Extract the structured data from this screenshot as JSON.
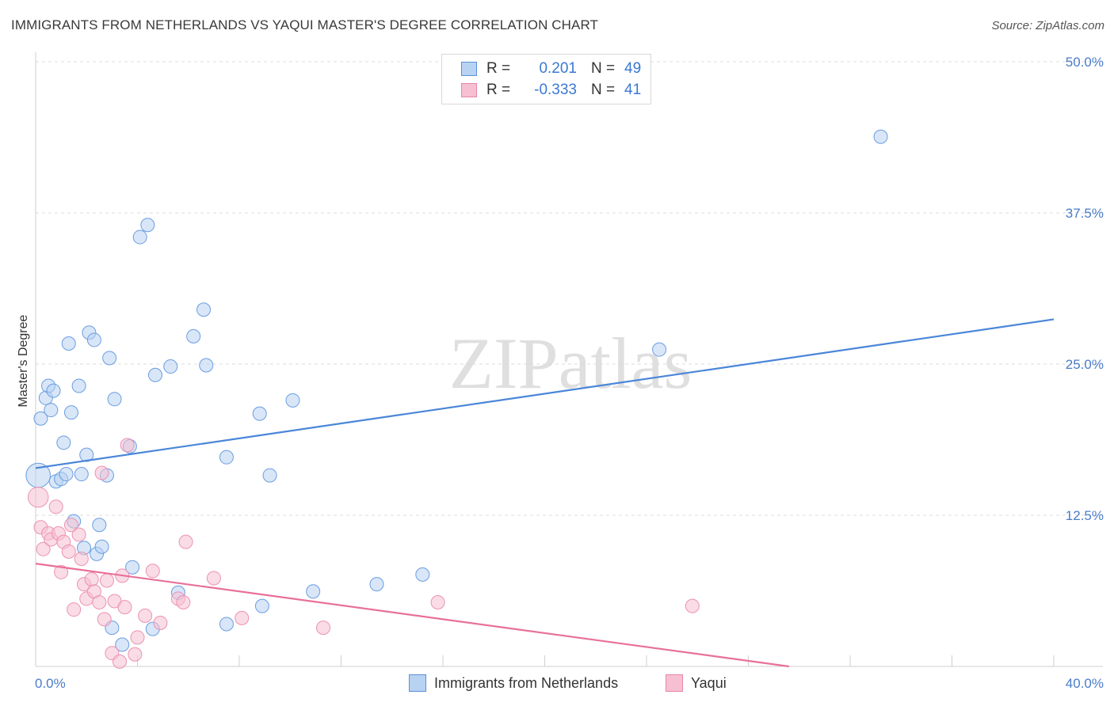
{
  "title": "IMMIGRANTS FROM NETHERLANDS VS YAQUI MASTER'S DEGREE CORRELATION CHART",
  "source": "Source: ZipAtlas.com",
  "watermark": "ZIPatlas",
  "legend": {
    "rows": [
      {
        "r_label": "R =",
        "r_value": "0.201",
        "n_label": "N =",
        "n_value": "49"
      },
      {
        "r_label": "R =",
        "r_value": "-0.333",
        "n_label": "N =",
        "n_value": "41"
      }
    ]
  },
  "bottom_legend": [
    "Immigrants from Netherlands",
    "Yaqui"
  ],
  "colors": {
    "blue": "#4a86d8",
    "blue_fill": "#b8d2f2",
    "pink": "#e8709a",
    "pink_fill": "#f6c0d2"
  },
  "chart_data": {
    "type": "scatter",
    "title": "IMMIGRANTS FROM NETHERLANDS VS YAQUI MASTER'S DEGREE CORRELATION CHART",
    "xlabel": "",
    "ylabel": "Master's Degree",
    "xlim": [
      0,
      40
    ],
    "ylim": [
      0,
      50
    ],
    "x_ticks": [
      "0.0%",
      "40.0%"
    ],
    "y_ticks": [
      {
        "value": 12.5,
        "label": "12.5%"
      },
      {
        "value": 25.0,
        "label": "25.0%"
      },
      {
        "value": 37.5,
        "label": "37.5%"
      },
      {
        "value": 50.0,
        "label": "50.0%"
      }
    ],
    "series": [
      {
        "name": "Immigrants from Netherlands",
        "color": "#4a86d8",
        "trend": {
          "x": [
            0,
            40
          ],
          "y": [
            16.4,
            28.7
          ]
        },
        "points": [
          [
            0.1,
            15.8,
            1.8
          ],
          [
            0.2,
            20.5,
            1
          ],
          [
            0.4,
            22.2,
            1
          ],
          [
            0.5,
            23.2,
            1
          ],
          [
            0.6,
            21.2,
            1
          ],
          [
            0.7,
            22.8,
            1
          ],
          [
            0.8,
            15.3,
            1
          ],
          [
            1.0,
            15.5,
            1
          ],
          [
            1.1,
            18.5,
            1
          ],
          [
            1.2,
            15.9,
            1
          ],
          [
            1.3,
            26.7,
            1
          ],
          [
            1.4,
            21.0,
            1
          ],
          [
            1.5,
            12.0,
            1
          ],
          [
            1.7,
            23.2,
            1
          ],
          [
            1.8,
            15.9,
            1
          ],
          [
            1.9,
            9.8,
            1
          ],
          [
            2.0,
            17.5,
            1
          ],
          [
            2.1,
            27.6,
            1
          ],
          [
            2.3,
            27.0,
            1
          ],
          [
            2.4,
            9.3,
            1
          ],
          [
            2.5,
            11.7,
            1
          ],
          [
            2.6,
            9.9,
            1
          ],
          [
            2.8,
            15.8,
            1
          ],
          [
            2.9,
            25.5,
            1
          ],
          [
            3.0,
            3.2,
            1
          ],
          [
            3.1,
            22.1,
            1
          ],
          [
            3.4,
            1.8,
            1
          ],
          [
            3.7,
            18.2,
            1
          ],
          [
            3.8,
            8.2,
            1
          ],
          [
            4.1,
            35.5,
            1
          ],
          [
            4.4,
            36.5,
            1
          ],
          [
            4.6,
            3.1,
            1
          ],
          [
            4.7,
            24.1,
            1
          ],
          [
            5.3,
            24.8,
            1
          ],
          [
            5.6,
            6.1,
            1
          ],
          [
            6.2,
            27.3,
            1
          ],
          [
            6.6,
            29.5,
            1
          ],
          [
            6.7,
            24.9,
            1
          ],
          [
            7.5,
            17.3,
            1
          ],
          [
            7.5,
            3.5,
            1
          ],
          [
            8.8,
            20.9,
            1
          ],
          [
            8.9,
            5.0,
            1
          ],
          [
            9.2,
            15.8,
            1
          ],
          [
            10.1,
            22.0,
            1
          ],
          [
            10.9,
            6.2,
            1
          ],
          [
            13.4,
            6.8,
            1
          ],
          [
            15.2,
            7.6,
            1
          ],
          [
            24.5,
            26.2,
            1
          ],
          [
            33.2,
            43.8,
            1
          ]
        ]
      },
      {
        "name": "Yaqui",
        "color": "#e8709a",
        "trend": {
          "x": [
            0,
            29.6
          ],
          "y": [
            8.5,
            0
          ]
        },
        "points": [
          [
            0.1,
            14.0,
            1.5
          ],
          [
            0.2,
            11.5,
            1
          ],
          [
            0.3,
            9.7,
            1
          ],
          [
            0.5,
            11.0,
            1
          ],
          [
            0.6,
            10.5,
            1
          ],
          [
            0.8,
            13.2,
            1
          ],
          [
            0.9,
            11.0,
            1
          ],
          [
            1.0,
            7.8,
            1
          ],
          [
            1.1,
            10.3,
            1
          ],
          [
            1.3,
            9.5,
            1
          ],
          [
            1.4,
            11.7,
            1
          ],
          [
            1.5,
            4.7,
            1
          ],
          [
            1.7,
            10.9,
            1
          ],
          [
            1.8,
            8.9,
            1
          ],
          [
            1.9,
            6.8,
            1
          ],
          [
            2.0,
            5.6,
            1
          ],
          [
            2.2,
            7.2,
            1
          ],
          [
            2.3,
            6.2,
            1
          ],
          [
            2.5,
            5.3,
            1
          ],
          [
            2.6,
            16.0,
            1
          ],
          [
            2.7,
            3.9,
            1
          ],
          [
            2.8,
            7.1,
            1
          ],
          [
            3.0,
            1.1,
            1
          ],
          [
            3.1,
            5.4,
            1
          ],
          [
            3.3,
            0.4,
            1
          ],
          [
            3.4,
            7.5,
            1
          ],
          [
            3.5,
            4.9,
            1
          ],
          [
            3.6,
            18.3,
            1
          ],
          [
            3.9,
            1.0,
            1
          ],
          [
            4.0,
            2.4,
            1
          ],
          [
            4.3,
            4.2,
            1
          ],
          [
            4.6,
            7.9,
            1
          ],
          [
            4.9,
            3.6,
            1
          ],
          [
            5.6,
            5.6,
            1
          ],
          [
            5.8,
            5.3,
            1
          ],
          [
            5.9,
            10.3,
            1
          ],
          [
            7.0,
            7.3,
            1
          ],
          [
            8.1,
            4.0,
            1
          ],
          [
            11.3,
            3.2,
            1
          ],
          [
            15.8,
            5.3,
            1
          ],
          [
            25.8,
            5.0,
            1
          ]
        ]
      }
    ]
  }
}
